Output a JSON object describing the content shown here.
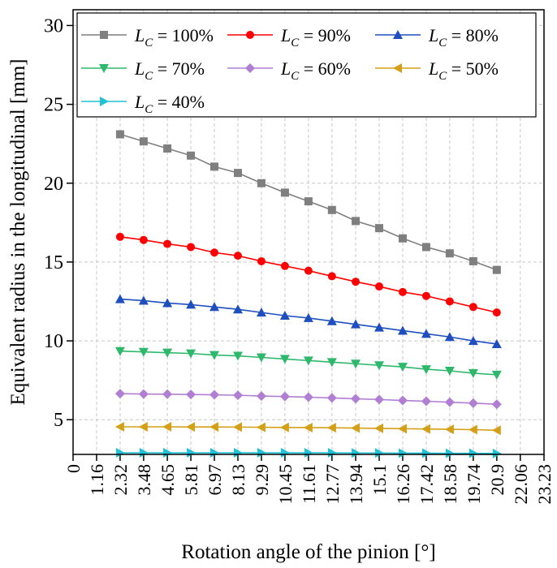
{
  "chart_data": {
    "type": "line",
    "xlabel": "Rotation angle of the pinion [°]",
    "ylabel": "Equivalent radius in the longitudinal [mm]",
    "xlim": [
      0,
      23.23
    ],
    "ylim": [
      2.8,
      31
    ],
    "x_ticks": [
      "0",
      "1.16",
      "2.32",
      "3.48",
      "4.65",
      "5.81",
      "6.97",
      "8.13",
      "9.29",
      "10.45",
      "11.61",
      "12.77",
      "13.94",
      "15.1",
      "16.26",
      "17.42",
      "18.58",
      "19.74",
      "20.9",
      "22.06",
      "23.23"
    ],
    "y_ticks": [
      "5",
      "10",
      "15",
      "20",
      "25",
      "30"
    ],
    "grid": true,
    "legend_position": "top",
    "x": [
      2.32,
      3.48,
      4.65,
      5.81,
      6.97,
      8.13,
      9.29,
      10.45,
      11.61,
      12.77,
      13.94,
      15.1,
      16.26,
      17.42,
      18.58,
      19.74,
      20.9
    ],
    "series": [
      {
        "name": "L_C = 100%",
        "legend_main": "L",
        "legend_sub": "C",
        "legend_rest": " = 100%",
        "color": "#7f7f7f",
        "marker": "square",
        "values": [
          23.1,
          22.65,
          22.2,
          21.75,
          21.05,
          20.65,
          20.0,
          19.4,
          18.85,
          18.3,
          17.6,
          17.15,
          16.5,
          15.95,
          15.55,
          15.05,
          14.5
        ]
      },
      {
        "name": "L_C = 90%",
        "legend_main": "L",
        "legend_sub": "C",
        "legend_rest": " = 90%",
        "color": "#ff0000",
        "marker": "circle",
        "values": [
          16.6,
          16.4,
          16.15,
          15.95,
          15.6,
          15.4,
          15.05,
          14.75,
          14.45,
          14.1,
          13.75,
          13.45,
          13.1,
          12.85,
          12.5,
          12.15,
          11.8
        ]
      },
      {
        "name": "L_C = 80%",
        "legend_main": "L",
        "legend_sub": "C",
        "legend_rest": " = 80%",
        "color": "#1f4fbf",
        "marker": "triangle-up",
        "values": [
          12.65,
          12.55,
          12.4,
          12.3,
          12.15,
          12.0,
          11.8,
          11.6,
          11.45,
          11.25,
          11.05,
          10.85,
          10.65,
          10.45,
          10.25,
          10.0,
          9.8
        ]
      },
      {
        "name": "L_C = 70%",
        "legend_main": "L",
        "legend_sub": "C",
        "legend_rest": " = 70%",
        "color": "#2db86b",
        "marker": "triangle-down",
        "values": [
          9.35,
          9.3,
          9.25,
          9.2,
          9.1,
          9.05,
          8.95,
          8.85,
          8.75,
          8.65,
          8.55,
          8.45,
          8.35,
          8.2,
          8.1,
          7.95,
          7.85
        ]
      },
      {
        "name": "L_C = 60%",
        "legend_main": "L",
        "legend_sub": "C",
        "legend_rest": " = 60%",
        "color": "#b07fd4",
        "marker": "diamond",
        "values": [
          6.65,
          6.63,
          6.62,
          6.6,
          6.58,
          6.55,
          6.5,
          6.47,
          6.43,
          6.38,
          6.33,
          6.28,
          6.22,
          6.17,
          6.11,
          6.05,
          5.98
        ]
      },
      {
        "name": "L_C = 50%",
        "legend_main": "L",
        "legend_sub": "C",
        "legend_rest": " = 50%",
        "color": "#d4a017",
        "marker": "triangle-left",
        "values": [
          4.55,
          4.55,
          4.55,
          4.54,
          4.54,
          4.53,
          4.52,
          4.51,
          4.5,
          4.49,
          4.47,
          4.45,
          4.43,
          4.41,
          4.39,
          4.37,
          4.33
        ]
      },
      {
        "name": "L_C = 40%",
        "legend_main": "L",
        "legend_sub": "C",
        "legend_rest": " = 40%",
        "color": "#22c1d6",
        "marker": "triangle-right",
        "values": [
          2.9,
          2.9,
          2.9,
          2.9,
          2.9,
          2.9,
          2.9,
          2.9,
          2.9,
          2.9,
          2.89,
          2.89,
          2.88,
          2.88,
          2.87,
          2.87,
          2.86
        ]
      }
    ]
  }
}
